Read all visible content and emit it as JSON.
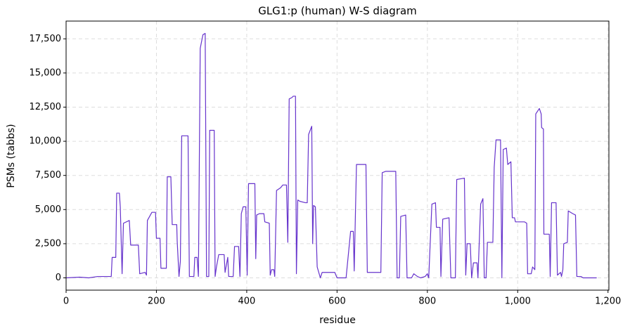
{
  "chart_data": {
    "type": "line",
    "title": "GLG1:p (human) W-S diagram",
    "x_label": "residue",
    "y_label": "PSMs (tabbs)",
    "color": "#6633cc",
    "grid": true,
    "xlim": [
      0,
      1202
    ],
    "ylim": [
      -900,
      18800
    ],
    "xticks": [
      0,
      200,
      400,
      600,
      800,
      {
        "value": 1000,
        "label": "1,000"
      },
      {
        "value": 1200,
        "label": "1,200"
      }
    ],
    "yticks": [
      0,
      {
        "value": 2500,
        "label": "2,500"
      },
      {
        "value": 5000,
        "label": "5,000"
      },
      {
        "value": 7500,
        "label": "7,500"
      },
      {
        "value": 10000,
        "label": "10,000"
      },
      {
        "value": 12500,
        "label": "12,500"
      },
      {
        "value": 15000,
        "label": "15,000"
      },
      {
        "value": 17500,
        "label": "17,500"
      }
    ],
    "x": [
      0,
      30,
      50,
      70,
      100,
      102,
      110,
      112,
      118,
      120,
      124,
      127,
      140,
      143,
      160,
      163,
      175,
      178,
      180,
      190,
      198,
      200,
      208,
      210,
      222,
      224,
      232,
      235,
      245,
      246,
      250,
      253,
      256,
      270,
      273,
      283,
      285,
      290,
      293,
      297,
      303,
      308,
      311,
      316,
      318,
      328,
      330,
      333,
      338,
      350,
      352,
      358,
      360,
      370,
      373,
      382,
      385,
      388,
      392,
      398,
      401,
      404,
      418,
      420,
      422,
      428,
      438,
      440,
      450,
      452,
      455,
      460,
      462,
      466,
      475,
      480,
      488,
      491,
      494,
      500,
      503,
      508,
      510,
      513,
      518,
      530,
      534,
      537,
      544,
      546,
      548,
      552,
      556,
      563,
      567,
      595,
      600,
      620,
      630,
      636,
      638,
      643,
      664,
      667,
      697,
      700,
      708,
      730,
      733,
      738,
      741,
      752,
      755,
      765,
      770,
      778,
      785,
      795,
      800,
      803,
      810,
      818,
      820,
      828,
      830,
      834,
      848,
      852,
      862,
      865,
      882,
      885,
      888,
      895,
      898,
      902,
      910,
      912,
      918,
      923,
      926,
      930,
      933,
      945,
      948,
      952,
      962,
      965,
      968,
      975,
      978,
      985,
      988,
      993,
      995,
      1015,
      1020,
      1022,
      1030,
      1033,
      1038,
      1040,
      1048,
      1052,
      1053,
      1057,
      1058,
      1070,
      1072,
      1075,
      1085,
      1088,
      1095,
      1097,
      1100,
      1102,
      1110,
      1112,
      1122,
      1128,
      1131,
      1140,
      1145,
      1175
    ],
    "values": [
      0,
      50,
      0,
      100,
      100,
      1500,
      1500,
      6200,
      6200,
      5200,
      300,
      4000,
      4200,
      2400,
      2400,
      300,
      400,
      200,
      4200,
      4800,
      4800,
      2900,
      2900,
      700,
      700,
      7400,
      7400,
      3900,
      3900,
      2700,
      100,
      1200,
      10400,
      10400,
      100,
      100,
      1500,
      1500,
      100,
      16800,
      17800,
      17900,
      100,
      100,
      10800,
      10800,
      100,
      800,
      1700,
      1700,
      400,
      1500,
      100,
      100,
      2300,
      2300,
      100,
      4700,
      5200,
      5200,
      200,
      6900,
      6900,
      1400,
      4600,
      4700,
      4700,
      4100,
      4000,
      200,
      600,
      600,
      100,
      6400,
      6600,
      6800,
      6800,
      2600,
      13100,
      13200,
      13300,
      13300,
      300,
      5700,
      5600,
      5500,
      5500,
      10500,
      11100,
      2500,
      5300,
      5200,
      800,
      0,
      400,
      400,
      0,
      0,
      3400,
      3400,
      500,
      8300,
      8300,
      400,
      400,
      7700,
      7800,
      7800,
      0,
      0,
      4500,
      4600,
      0,
      0,
      300,
      100,
      0,
      100,
      300,
      0,
      5400,
      5500,
      3700,
      3700,
      100,
      4300,
      4400,
      0,
      0,
      7200,
      7300,
      200,
      2500,
      2500,
      0,
      1100,
      1100,
      0,
      5400,
      5800,
      0,
      0,
      2600,
      2600,
      8100,
      10100,
      10100,
      0,
      9400,
      9500,
      8300,
      8500,
      4400,
      4400,
      4100,
      4100,
      4000,
      300,
      300,
      800,
      600,
      12000,
      12400,
      12000,
      11000,
      10900,
      3200,
      3200,
      100,
      5500,
      5500,
      200,
      400,
      100,
      600,
      2500,
      2600,
      4900,
      4700,
      4600,
      100,
      100,
      0,
      0
    ]
  }
}
